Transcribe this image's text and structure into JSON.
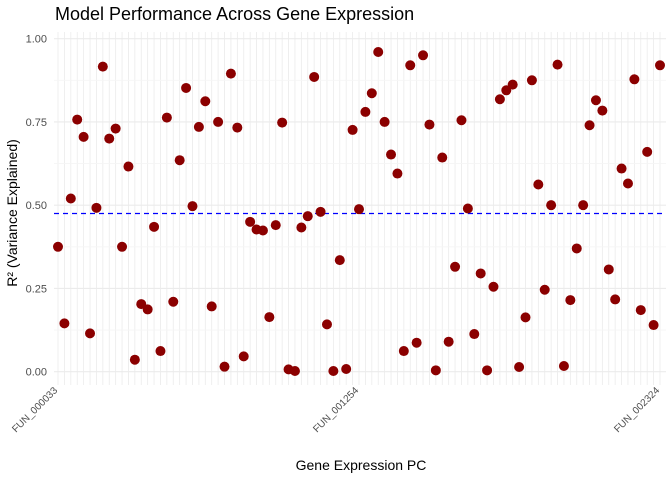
{
  "chart_data": {
    "type": "scatter",
    "title": "Model Performance Across Gene Expression",
    "xlabel": "Gene Expression PC",
    "ylabel": "R² (Variance Explained)",
    "ylim": [
      -0.04,
      1.02
    ],
    "yticks": [
      0.0,
      0.25,
      0.5,
      0.75,
      1.0
    ],
    "ytick_labels": [
      "0.00",
      "0.25",
      "0.50",
      "0.75",
      "1.00"
    ],
    "grid": true,
    "legend": "none",
    "threshold_line": {
      "y": 0.475,
      "style": "dashed"
    },
    "x_labels_visible": [
      "FUN_000033",
      "FUN_001254",
      "FUN_002324"
    ],
    "values": [
      0.375,
      0.145,
      0.52,
      0.757,
      0.705,
      0.115,
      0.492,
      0.916,
      0.7,
      0.73,
      0.375,
      0.616,
      0.036,
      0.203,
      0.187,
      0.435,
      0.062,
      0.763,
      0.21,
      0.635,
      0.852,
      0.497,
      0.735,
      0.812,
      0.196,
      0.75,
      0.015,
      0.895,
      0.733,
      0.046,
      0.45,
      0.427,
      0.424,
      0.164,
      0.44,
      0.748,
      0.007,
      0.002,
      0.433,
      0.467,
      0.885,
      0.48,
      0.142,
      0.002,
      0.335,
      0.008,
      0.726,
      0.488,
      0.78,
      0.836,
      0.96,
      0.75,
      0.652,
      0.595,
      0.062,
      0.92,
      0.087,
      0.95,
      0.742,
      0.004,
      0.643,
      0.09,
      0.315,
      0.755,
      0.49,
      0.113,
      0.295,
      0.004,
      0.255,
      0.818,
      0.845,
      0.862,
      0.014,
      0.163,
      0.875,
      0.562,
      0.246,
      0.5,
      0.922,
      0.017,
      0.215,
      0.37,
      0.5,
      0.74,
      0.815,
      0.784,
      0.307,
      0.217,
      0.61,
      0.565,
      0.878,
      0.185,
      0.66,
      0.14,
      0.92
    ],
    "colors": {
      "points": "#8b0000",
      "line": "#0000ff",
      "grid_major": "#ebebeb",
      "grid_minor": "#f5f5f5"
    }
  }
}
